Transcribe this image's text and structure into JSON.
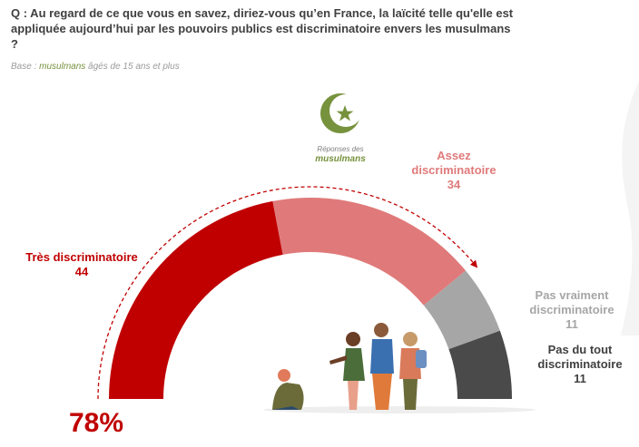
{
  "header": {
    "question": "Q : Au regard de ce que vous en savez, diriez-vous qu’en France, la laïcité telle qu'elle est appliquée aujourd’hui par les pouvoirs publics est discriminatoire envers les musulmans ?",
    "base_prefix": "Base : ",
    "base_group": "musulmans",
    "base_suffix": " âgés de 15 ans et plus"
  },
  "respondents": {
    "caption": "Réponses des",
    "group": "musulmans"
  },
  "total_label": "78%",
  "chart_data": {
    "type": "gauge",
    "segments": [
      {
        "label_line1": "Très discriminatoire",
        "label_line2": "",
        "value": 44,
        "color": "#c00000"
      },
      {
        "label_line1": "Assez",
        "label_line2": "discriminatoire",
        "value": 34,
        "color": "#e07a7a"
      },
      {
        "label_line1": "Pas vraiment",
        "label_line2": "discriminatoire",
        "value": 11,
        "color": "#a6a6a6"
      },
      {
        "label_line1": "Pas du tout",
        "label_line2": "discriminatoire",
        "value": 11,
        "color": "#4a4a4a"
      }
    ],
    "total": 78
  },
  "colors": {
    "accent_red": "#c00000",
    "light_red": "#e07a7a",
    "grey": "#a6a6a6",
    "dark_grey": "#4a4a4a",
    "green": "#76923c"
  },
  "icons": {
    "emblem": "crescent-star-icon",
    "illustration": "people-illustration"
  }
}
